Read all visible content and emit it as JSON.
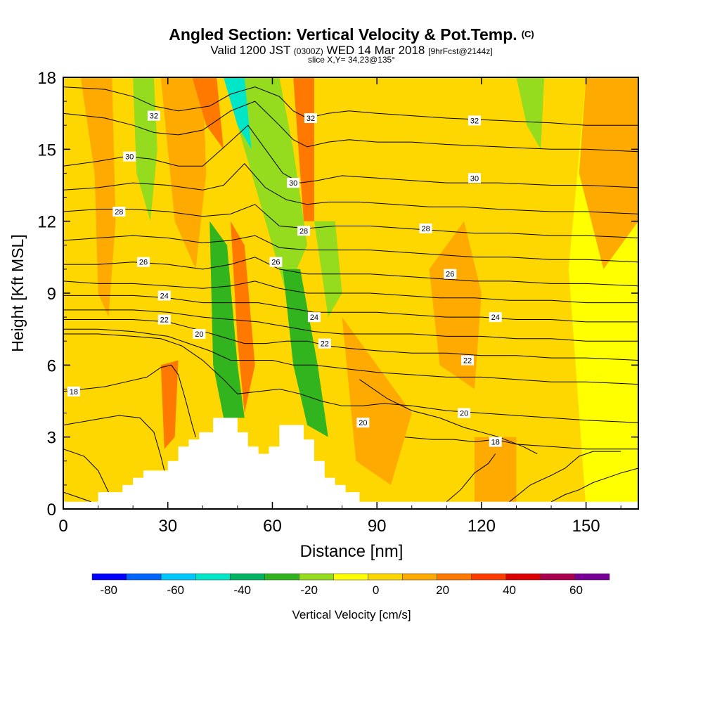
{
  "header": {
    "title": "Angled Section: Vertical Velocity & Pot.Temp.",
    "title_mark": "(C)",
    "valid_prefix": "Valid 1200 JST",
    "valid_z": "(0300Z)",
    "valid_date": "WED 14 Mar 2018",
    "forecast": "[9hrFcst@2144z]",
    "slice": "slice X,Y= 34,23@135°"
  },
  "chart_data": {
    "type": "heatmap",
    "xlabel": "Distance [nm]",
    "ylabel": "Height [Kft MSL]",
    "xlim": [
      0,
      165
    ],
    "ylim": [
      0,
      18
    ],
    "x_ticks": [
      0,
      30,
      60,
      90,
      120,
      150
    ],
    "y_ticks": [
      0,
      3,
      6,
      9,
      12,
      15,
      18
    ],
    "colorbar": {
      "label": "Vertical Velocity [cm/s]",
      "bounds": [
        -85,
        70
      ],
      "tick_values": [
        -80,
        -60,
        -40,
        -20,
        0,
        20,
        40,
        60
      ],
      "colors": [
        "#0000ff",
        "#0064ff",
        "#00c8ff",
        "#00e6c8",
        "#00b464",
        "#32b41e",
        "#96dc1e",
        "#ffff00",
        "#ffd700",
        "#ffaa00",
        "#ff7800",
        "#ff3c00",
        "#dc0000",
        "#aa0050",
        "#780096"
      ]
    },
    "terrain": [
      [
        0,
        0.3
      ],
      [
        10,
        0.3
      ],
      [
        10,
        0.7
      ],
      [
        17,
        0.7
      ],
      [
        17,
        1.0
      ],
      [
        20,
        1.0
      ],
      [
        20,
        1.3
      ],
      [
        23,
        1.3
      ],
      [
        23,
        1.6
      ],
      [
        30,
        1.6
      ],
      [
        30,
        2.0
      ],
      [
        33,
        2.0
      ],
      [
        33,
        2.6
      ],
      [
        36,
        2.6
      ],
      [
        36,
        2.9
      ],
      [
        39,
        2.9
      ],
      [
        39,
        3.2
      ],
      [
        43,
        3.2
      ],
      [
        43,
        3.8
      ],
      [
        50,
        3.8
      ],
      [
        50,
        3.2
      ],
      [
        53,
        3.2
      ],
      [
        53,
        2.6
      ],
      [
        56,
        2.6
      ],
      [
        56,
        2.3
      ],
      [
        59,
        2.3
      ],
      [
        59,
        2.6
      ],
      [
        62,
        2.6
      ],
      [
        62,
        3.5
      ],
      [
        69,
        3.5
      ],
      [
        69,
        2.9
      ],
      [
        72,
        2.9
      ],
      [
        72,
        2.0
      ],
      [
        75,
        2.0
      ],
      [
        75,
        1.3
      ],
      [
        78,
        1.3
      ],
      [
        78,
        1.0
      ],
      [
        81,
        1.0
      ],
      [
        81,
        0.7
      ],
      [
        85,
        0.7
      ],
      [
        85,
        0.3
      ],
      [
        165,
        0.3
      ]
    ],
    "contours": [
      {
        "label": "32",
        "x": [
          0,
          12,
          20,
          26,
          33,
          42,
          48,
          55,
          62,
          66,
          70,
          76,
          82,
          90,
          100,
          110,
          125,
          140,
          150,
          165
        ],
        "y": [
          17.6,
          17.5,
          17.2,
          16.8,
          16.6,
          16.8,
          17.3,
          17.6,
          17.2,
          16.6,
          16.3,
          16.5,
          16.6,
          16.5,
          16.4,
          16.3,
          16.2,
          16.1,
          16.0,
          16.0
        ]
      },
      {
        "label": "",
        "x": [
          0,
          12,
          20,
          26,
          33,
          40,
          48,
          55,
          62,
          66,
          70,
          76,
          82,
          90,
          100,
          110,
          125,
          140,
          150,
          165
        ],
        "y": [
          16.5,
          16.3,
          16.0,
          15.7,
          15.6,
          15.8,
          16.6,
          17.0,
          16.0,
          15.4,
          15.1,
          15.3,
          15.4,
          15.3,
          15.3,
          15.2,
          15.1,
          15.0,
          15.0,
          14.9
        ]
      },
      {
        "label": "30",
        "x": [
          0,
          10,
          18,
          25,
          33,
          40,
          47,
          53,
          58,
          63,
          68,
          73,
          80,
          90,
          100,
          110,
          125,
          140,
          150,
          165
        ],
        "y": [
          14.3,
          14.5,
          14.7,
          14.6,
          14.3,
          14.3,
          15.2,
          16.0,
          15.0,
          14.0,
          13.6,
          13.7,
          13.9,
          13.8,
          13.7,
          13.6,
          13.6,
          13.5,
          13.5,
          13.4
        ]
      },
      {
        "label": "",
        "x": [
          0,
          10,
          20,
          30,
          40,
          46,
          52,
          58,
          64,
          70,
          76,
          85,
          95,
          105,
          115,
          125,
          140,
          150,
          165
        ],
        "y": [
          13.3,
          13.4,
          13.6,
          13.5,
          13.3,
          13.5,
          14.4,
          13.4,
          12.9,
          12.7,
          12.8,
          12.8,
          12.7,
          12.6,
          12.6,
          12.5,
          12.4,
          12.4,
          12.3
        ]
      },
      {
        "label": "28",
        "x": [
          0,
          10,
          20,
          30,
          40,
          48,
          55,
          62,
          70,
          78,
          88,
          98,
          108,
          118,
          128,
          140,
          150,
          165
        ],
        "y": [
          12.4,
          12.5,
          12.5,
          12.4,
          12.2,
          12.3,
          12.7,
          11.8,
          11.7,
          11.8,
          11.8,
          11.7,
          11.6,
          11.5,
          11.5,
          11.4,
          11.4,
          11.3
        ]
      },
      {
        "label": "",
        "x": [
          0,
          10,
          20,
          30,
          40,
          48,
          55,
          62,
          70,
          78,
          88,
          98,
          108,
          118,
          128,
          140,
          150,
          165
        ],
        "y": [
          11.2,
          11.3,
          11.4,
          11.3,
          11.1,
          11.2,
          11.4,
          10.9,
          10.8,
          10.8,
          10.8,
          10.7,
          10.6,
          10.5,
          10.5,
          10.4,
          10.4,
          10.3
        ]
      },
      {
        "label": "26",
        "x": [
          0,
          10,
          20,
          30,
          40,
          48,
          55,
          62,
          70,
          78,
          88,
          98,
          108,
          118,
          128,
          140,
          150,
          165
        ],
        "y": [
          10.2,
          10.2,
          10.3,
          10.2,
          10.0,
          10.2,
          10.5,
          10.0,
          9.8,
          9.8,
          9.8,
          9.7,
          9.6,
          9.5,
          9.5,
          9.4,
          9.4,
          9.3
        ]
      },
      {
        "label": "",
        "x": [
          0,
          10,
          20,
          30,
          40,
          48,
          55,
          62,
          70,
          78,
          88,
          98,
          108,
          118,
          128,
          140,
          150,
          165
        ],
        "y": [
          9.5,
          9.4,
          9.4,
          9.3,
          9.2,
          9.3,
          9.5,
          9.2,
          9.0,
          9.0,
          9.0,
          8.9,
          8.8,
          8.8,
          8.7,
          8.7,
          8.6,
          8.6
        ]
      },
      {
        "label": "24",
        "x": [
          0,
          10,
          20,
          30,
          40,
          48,
          56,
          64,
          72,
          80,
          90,
          100,
          110,
          120,
          130,
          140,
          150,
          165
        ],
        "y": [
          8.9,
          8.9,
          8.9,
          8.8,
          8.6,
          8.6,
          8.6,
          8.4,
          8.2,
          8.2,
          8.2,
          8.1,
          8.0,
          8.0,
          7.9,
          7.9,
          7.8,
          7.8
        ]
      },
      {
        "label": "",
        "x": [
          0,
          10,
          20,
          30,
          40,
          48,
          56,
          64,
          72,
          80,
          90,
          100,
          110,
          120,
          130,
          140,
          150,
          165
        ],
        "y": [
          8.3,
          8.3,
          8.3,
          8.2,
          8.0,
          7.9,
          7.8,
          7.6,
          7.4,
          7.3,
          7.3,
          7.3,
          7.2,
          7.2,
          7.1,
          7.1,
          7.0,
          7.0
        ]
      },
      {
        "label": "22",
        "x": [
          0,
          10,
          20,
          30,
          38,
          45,
          52,
          58,
          64,
          70,
          76,
          82,
          90,
          100,
          110,
          120,
          130,
          140,
          150,
          165
        ],
        "y": [
          7.9,
          7.9,
          7.9,
          7.8,
          7.5,
          7.2,
          6.9,
          6.9,
          7.0,
          7.0,
          6.8,
          6.7,
          6.6,
          6.5,
          6.5,
          6.4,
          6.4,
          6.3,
          6.3,
          6.2
        ]
      },
      {
        "label": "",
        "x": [
          0,
          10,
          20,
          30,
          36,
          42,
          48,
          54,
          60,
          66,
          72,
          78,
          84,
          90,
          100,
          110,
          120,
          130,
          140,
          150,
          165
        ],
        "y": [
          7.5,
          7.5,
          7.4,
          7.2,
          6.9,
          6.6,
          6.2,
          6.2,
          6.2,
          6.0,
          6.0,
          5.9,
          5.8,
          5.7,
          5.6,
          5.5,
          5.5,
          5.4,
          5.3,
          5.3,
          5.2
        ]
      },
      {
        "label": "20",
        "x": [
          0,
          10,
          20,
          28,
          34,
          40,
          46,
          50,
          56,
          62,
          68,
          74,
          80,
          86,
          92,
          100,
          110,
          120,
          130,
          140,
          150,
          165
        ],
        "y": [
          7.3,
          7.3,
          7.2,
          7.1,
          6.8,
          6.2,
          5.4,
          4.8,
          4.9,
          5.0,
          4.8,
          4.5,
          4.3,
          4.3,
          4.4,
          4.3,
          4.1,
          4.0,
          3.9,
          3.8,
          3.7,
          3.6
        ]
      },
      {
        "label": "18",
        "x": [
          0,
          6,
          12,
          18,
          24,
          28,
          31,
          33,
          35,
          37,
          38
        ],
        "y": [
          4.9,
          5.0,
          5.1,
          5.3,
          5.5,
          5.9,
          6.0,
          5.6,
          4.6,
          3.5,
          3.0
        ]
      },
      {
        "label": "",
        "x": [
          0,
          8,
          16,
          22,
          26,
          28,
          29
        ],
        "y": [
          3.5,
          3.7,
          3.9,
          3.8,
          3.2,
          2.2,
          1.6
        ]
      },
      {
        "label": "",
        "x": [
          0,
          6,
          10,
          12,
          13
        ],
        "y": [
          2.5,
          2.2,
          1.6,
          1.0,
          0.7
        ]
      },
      {
        "label": "",
        "x": [
          0,
          4,
          8
        ],
        "y": [
          0.7,
          0.5,
          0.3
        ]
      },
      {
        "label": "",
        "x": [
          85,
          93,
          100,
          108,
          115,
          120,
          125,
          132,
          136
        ],
        "y": [
          5.4,
          4.6,
          4.1,
          3.8,
          3.4,
          3.2,
          3.0,
          2.6,
          2.3
        ]
      },
      {
        "label": "",
        "x": [
          98,
          106,
          112,
          118,
          124,
          130,
          140,
          150,
          165
        ],
        "y": [
          3.0,
          2.9,
          2.9,
          2.8,
          2.9,
          2.7,
          2.6,
          2.5,
          2.5
        ]
      },
      {
        "label": "",
        "x": [
          110,
          114,
          118,
          122,
          124
        ],
        "y": [
          0.3,
          0.8,
          1.5,
          1.9,
          2.3
        ]
      },
      {
        "label": "",
        "x": [
          128,
          134,
          140,
          144,
          148,
          152,
          156,
          160
        ],
        "y": [
          0.3,
          1.0,
          1.4,
          1.7,
          2.2,
          2.4,
          2.4,
          2.4
        ]
      },
      {
        "label": "",
        "x": [
          140,
          144,
          148,
          152,
          156,
          160,
          165
        ],
        "y": [
          0.3,
          0.6,
          0.8,
          1.1,
          1.3,
          1.5,
          1.7
        ]
      }
    ],
    "labels": [
      {
        "text": "32",
        "x": 26,
        "y": 16.4
      },
      {
        "text": "32",
        "x": 71,
        "y": 16.3
      },
      {
        "text": "32",
        "x": 118,
        "y": 16.2
      },
      {
        "text": "30",
        "x": 19,
        "y": 14.7
      },
      {
        "text": "30",
        "x": 66,
        "y": 13.6
      },
      {
        "text": "30",
        "x": 118,
        "y": 13.8
      },
      {
        "text": "28",
        "x": 16,
        "y": 12.4
      },
      {
        "text": "28",
        "x": 69,
        "y": 11.6
      },
      {
        "text": "28",
        "x": 104,
        "y": 11.7
      },
      {
        "text": "26",
        "x": 23,
        "y": 10.3
      },
      {
        "text": "26",
        "x": 61,
        "y": 10.3
      },
      {
        "text": "26",
        "x": 111,
        "y": 9.8
      },
      {
        "text": "24",
        "x": 29,
        "y": 8.9
      },
      {
        "text": "24",
        "x": 72,
        "y": 8.0
      },
      {
        "text": "24",
        "x": 124,
        "y": 8.0
      },
      {
        "text": "22",
        "x": 29,
        "y": 7.9
      },
      {
        "text": "22",
        "x": 75,
        "y": 6.9
      },
      {
        "text": "22",
        "x": 116,
        "y": 6.2
      },
      {
        "text": "20",
        "x": 39,
        "y": 7.3
      },
      {
        "text": "20",
        "x": 86,
        "y": 3.6
      },
      {
        "text": "20",
        "x": 115,
        "y": 4.0
      },
      {
        "text": "18",
        "x": 3,
        "y": 4.9
      },
      {
        "text": "18",
        "x": 124,
        "y": 2.8
      }
    ]
  }
}
